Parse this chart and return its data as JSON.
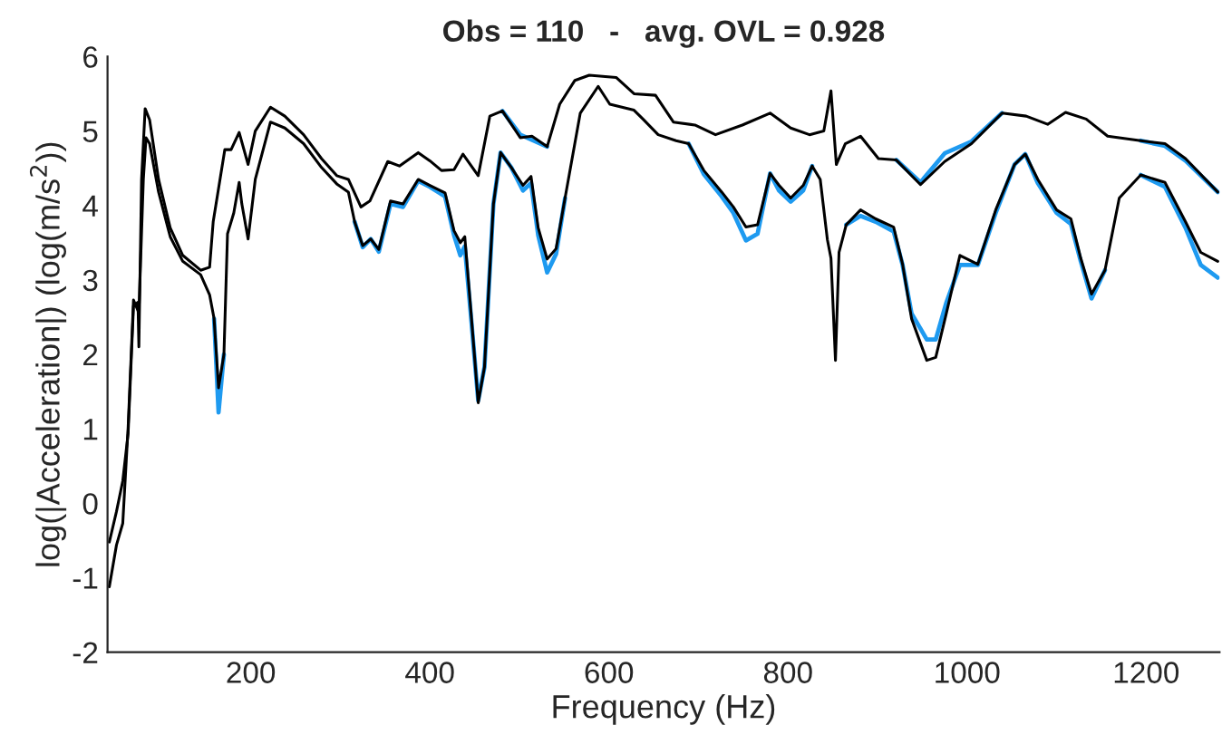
{
  "chart_data": {
    "type": "line",
    "title": "Obs = 110   -   avg. OVL = 0.928",
    "xlabel": "Frequency (Hz)",
    "ylabel": "log(|Acceleration|) (log(m/s$^{2}$))",
    "xlim": [
      40,
      1282
    ],
    "xticks": [
      200,
      400,
      600,
      800,
      1000,
      1200
    ],
    "ylim": [
      -2,
      6
    ],
    "yticks": [
      -2,
      -1,
      0,
      1,
      2,
      3,
      4,
      5,
      6
    ],
    "grid": false,
    "legend": false,
    "marker": "none",
    "line_style": "solid",
    "series": [
      {
        "color": "#1e9af0",
        "x": [
          481,
          501,
          514,
          531
        ],
        "values": [
          5.27,
          4.95,
          4.88,
          4.79
        ]
      },
      {
        "color": "#1e9af0",
        "x": [
          921,
          948,
          975,
          1005,
          1039
        ],
        "values": [
          4.61,
          4.31,
          4.7,
          4.86,
          5.24
        ]
      },
      {
        "color": "#1e9af0",
        "x": [
          1194,
          1221,
          1244,
          1280
        ],
        "values": [
          4.87,
          4.8,
          4.6,
          4.18
        ]
      },
      {
        "color": "#1e9af0",
        "x": [
          159,
          164,
          170
        ],
        "values": [
          2.48,
          1.22,
          2.0
        ]
      },
      {
        "color": "#1e9af0",
        "x": [
          316,
          325,
          334,
          343,
          356,
          370,
          387,
          400,
          417,
          427,
          434,
          439,
          446,
          454,
          461,
          471,
          479,
          491,
          504,
          513,
          521,
          531,
          541,
          551
        ],
        "values": [
          3.78,
          3.44,
          3.55,
          3.38,
          4.02,
          3.98,
          4.33,
          4.25,
          4.12,
          3.6,
          3.33,
          3.45,
          2.5,
          1.38,
          1.83,
          4.02,
          4.71,
          4.51,
          4.2,
          4.3,
          3.6,
          3.1,
          3.35,
          4.1
        ]
      },
      {
        "color": "#1e9af0",
        "x": [
          689,
          706,
          726,
          739,
          753,
          766,
          780,
          790,
          803,
          817,
          827
        ],
        "values": [
          4.83,
          4.42,
          4.12,
          3.9,
          3.53,
          3.62,
          4.43,
          4.2,
          4.05,
          4.2,
          4.53
        ]
      },
      {
        "color": "#1e9af0",
        "x": [
          865,
          881,
          898,
          918,
          928,
          938,
          955,
          965,
          977,
          992,
          1012,
          1032,
          1053,
          1065,
          1079,
          1100,
          1116,
          1127,
          1139,
          1154
        ],
        "values": [
          3.74,
          3.86,
          3.78,
          3.65,
          3.2,
          2.55,
          2.2,
          2.2,
          2.7,
          3.2,
          3.2,
          3.9,
          4.55,
          4.69,
          4.3,
          3.9,
          3.75,
          3.25,
          2.75,
          3.13
        ]
      },
      {
        "color": "#1e9af0",
        "x": [
          1194,
          1221,
          1244,
          1261,
          1280
        ],
        "values": [
          4.41,
          4.25,
          3.7,
          3.2,
          3.03
        ]
      },
      {
        "color": "#000000",
        "x": [
          42,
          50,
          57,
          63,
          69,
          74,
          75,
          78,
          82,
          87,
          97,
          110,
          124,
          144,
          154,
          158,
          171,
          178,
          187,
          197,
          205,
          222,
          238,
          259,
          279,
          296,
          309,
          323,
          333,
          353,
          366,
          387,
          400,
          413,
          427,
          437,
          454,
          467,
          481,
          501,
          514,
          531,
          545,
          562,
          578,
          608,
          628,
          652,
          672,
          696,
          719,
          749,
          780,
          803,
          824,
          840,
          848,
          854,
          864,
          881,
          901,
          921,
          948,
          975,
          1005,
          1039,
          1066,
          1090,
          1110,
          1133,
          1157,
          1194,
          1221,
          1244,
          1280
        ],
        "values": [
          -0.52,
          -0.11,
          0.3,
          0.94,
          2.65,
          2.7,
          2.1,
          4.35,
          5.3,
          5.15,
          4.35,
          3.7,
          3.33,
          3.13,
          3.17,
          3.78,
          4.75,
          4.75,
          4.98,
          4.55,
          5.0,
          5.32,
          5.2,
          4.95,
          4.63,
          4.4,
          4.35,
          3.98,
          4.06,
          4.59,
          4.53,
          4.71,
          4.6,
          4.47,
          4.48,
          4.69,
          4.4,
          5.2,
          5.27,
          4.91,
          4.93,
          4.79,
          5.36,
          5.68,
          5.75,
          5.72,
          5.5,
          5.48,
          5.12,
          5.08,
          4.95,
          5.08,
          5.24,
          5.04,
          4.95,
          5.0,
          5.54,
          4.55,
          4.83,
          4.93,
          4.63,
          4.61,
          4.28,
          4.59,
          4.83,
          5.24,
          5.2,
          5.09,
          5.25,
          5.16,
          4.93,
          4.87,
          4.83,
          4.63,
          4.18
        ]
      },
      {
        "color": "#000000",
        "x": [
          42,
          50,
          57,
          63,
          69,
          75,
          80,
          83,
          87,
          97,
          110,
          124,
          144,
          154,
          159,
          164,
          170,
          174,
          181,
          187,
          190,
          197,
          205,
          222,
          238,
          259,
          279,
          296,
          309,
          316,
          325,
          334,
          343,
          356,
          370,
          387,
          400,
          417,
          427,
          434,
          439,
          446,
          454,
          461,
          471,
          479,
          491,
          504,
          513,
          521,
          531,
          541,
          551,
          568,
          588,
          601,
          628,
          638,
          655,
          675,
          689,
          706,
          726,
          739,
          753,
          766,
          780,
          790,
          803,
          817,
          827,
          836,
          844,
          848,
          853,
          857,
          865,
          881,
          898,
          918,
          928,
          938,
          955,
          965,
          977,
          992,
          1012,
          1032,
          1053,
          1065,
          1079,
          1100,
          1116,
          1127,
          1139,
          1154,
          1170,
          1194,
          1221,
          1244,
          1261,
          1280
        ],
        "values": [
          -1.12,
          -0.56,
          -0.27,
          1.02,
          2.73,
          2.56,
          4.35,
          4.91,
          4.83,
          4.18,
          3.58,
          3.25,
          3.07,
          2.8,
          2.48,
          1.55,
          2.0,
          3.62,
          3.9,
          4.31,
          4.02,
          3.55,
          4.35,
          5.12,
          5.04,
          4.83,
          4.51,
          4.29,
          4.18,
          3.78,
          3.46,
          3.55,
          3.41,
          4.06,
          4.02,
          4.35,
          4.27,
          4.17,
          3.66,
          3.5,
          3.58,
          2.56,
          1.35,
          1.83,
          4.02,
          4.71,
          4.51,
          4.27,
          4.39,
          3.7,
          3.28,
          3.42,
          4.1,
          5.24,
          5.6,
          5.36,
          5.28,
          5.16,
          4.95,
          4.87,
          4.83,
          4.47,
          4.18,
          3.98,
          3.71,
          3.74,
          4.43,
          4.27,
          4.1,
          4.27,
          4.53,
          4.35,
          3.54,
          3.29,
          1.92,
          3.37,
          3.74,
          3.94,
          3.82,
          3.71,
          3.21,
          2.48,
          1.92,
          1.96,
          2.56,
          3.33,
          3.21,
          3.94,
          4.55,
          4.69,
          4.35,
          3.94,
          3.82,
          3.29,
          2.81,
          3.13,
          4.1,
          4.41,
          4.31,
          3.78,
          3.37,
          3.25
        ]
      }
    ]
  }
}
